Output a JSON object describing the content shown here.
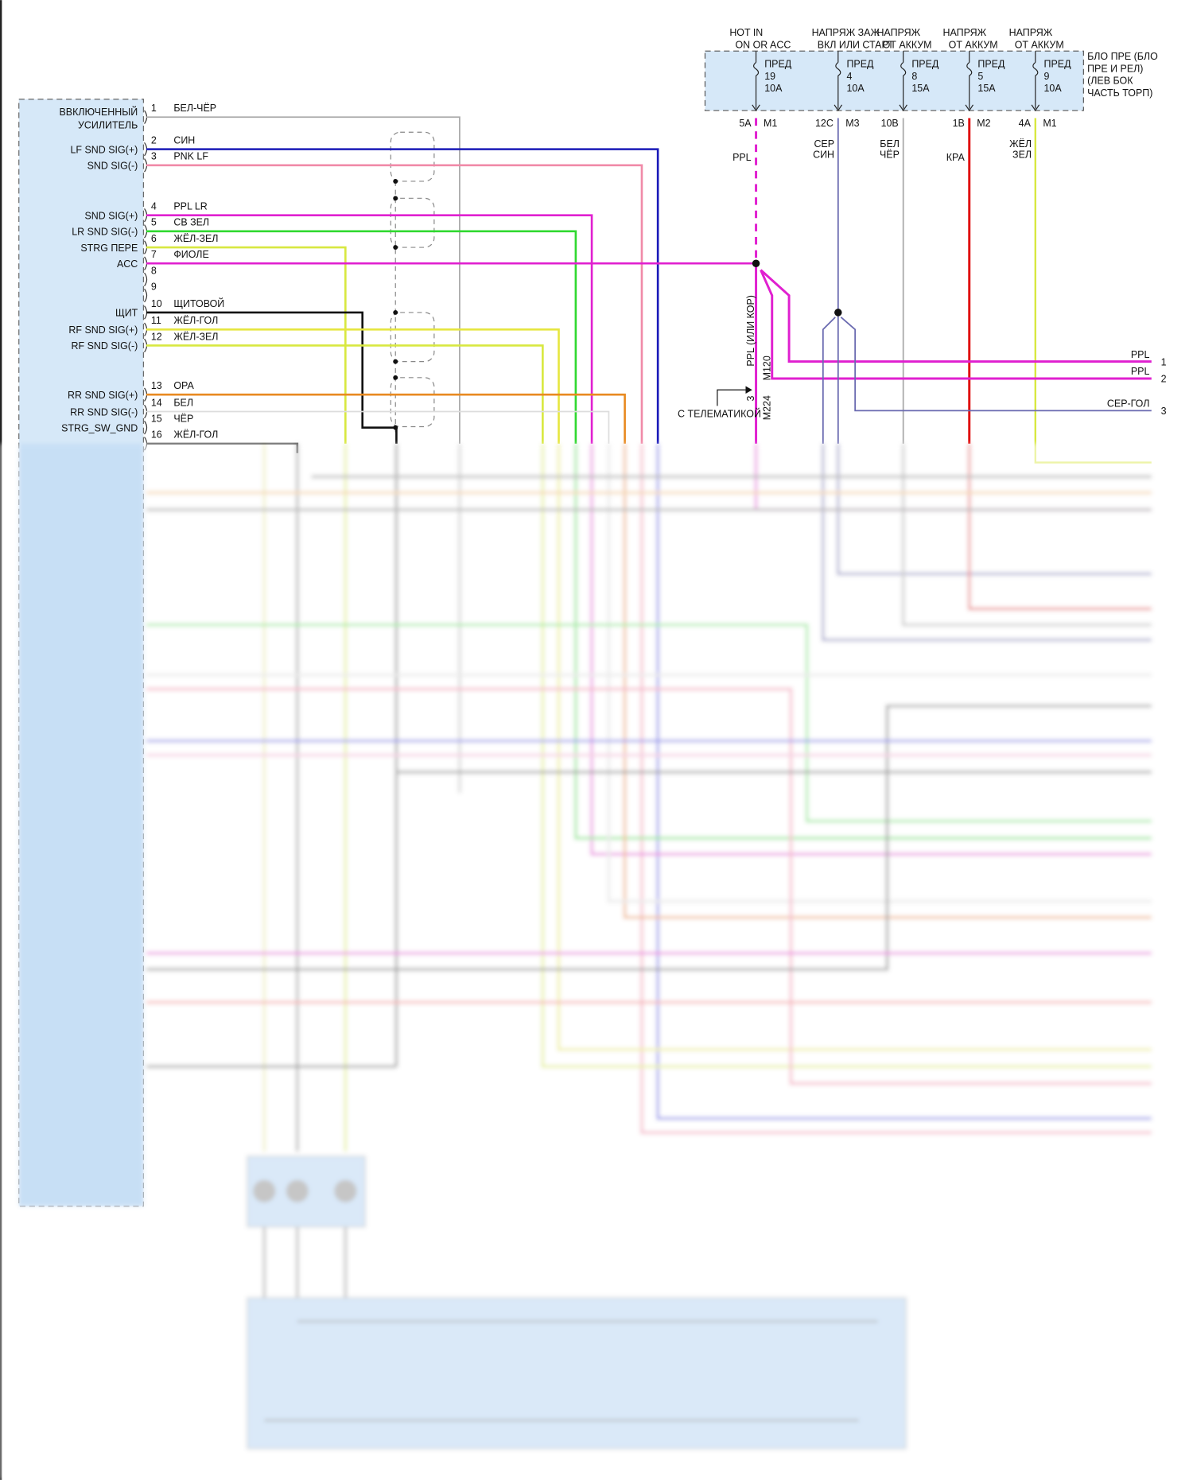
{
  "amp_connector": {
    "signals": [
      {
        "pin": "1",
        "signal": "ВВКЛЮЧЕННЫЙ",
        "signal2": "УСИЛИТЕЛЬ",
        "wire": "БЕЛ-ЧЁР",
        "color": "#a8a8a8"
      },
      {
        "pin": "2",
        "signal": "LF SND SIG(+)",
        "wire": "СИН",
        "color": "#1a1ab8"
      },
      {
        "pin": "3",
        "signal": "SND SIG(-)",
        "wire": "PNK LF",
        "color": "#f08aa8"
      },
      {
        "pin": "4",
        "signal": "SND SIG(+)",
        "wire": "PPL LR",
        "color": "#e020d0"
      },
      {
        "pin": "5",
        "signal": "LR SND SIG(-)",
        "wire": "СВ ЗЕЛ",
        "color": "#30d830"
      },
      {
        "pin": "6",
        "signal": "STRG ПЕРЕ",
        "wire": "ЖЁЛ-ЗЕЛ",
        "color": "#d8e840"
      },
      {
        "pin": "7",
        "signal": "ACC",
        "wire": "ФИОЛЕ",
        "color": "#e020d0"
      },
      {
        "pin": "8",
        "signal": "",
        "wire": "",
        "color": ""
      },
      {
        "pin": "9",
        "signal": "",
        "wire": "",
        "color": ""
      },
      {
        "pin": "10",
        "signal": "ЩИТ",
        "wire": "ЩИТОВОЙ",
        "color": "#111111"
      },
      {
        "pin": "11",
        "signal": "RF SND SIG(+)",
        "wire": "ЖЁЛ-ГОЛ",
        "color": "#e6e640"
      },
      {
        "pin": "12",
        "signal": "RF SND SIG(-)",
        "wire": "ЖЁЛ-ЗЕЛ",
        "color": "#d8e840"
      },
      {
        "pin": "13",
        "signal": "RR SND SIG(+)",
        "wire": "ОРА",
        "color": "#e88a20"
      },
      {
        "pin": "14",
        "signal": "RR SND SIG(-)",
        "wire": "БЕЛ",
        "color": "#d8d8d8"
      },
      {
        "pin": "15",
        "signal": "STRG_SW_GND",
        "wire": "ЧЁР",
        "color": "#555555"
      },
      {
        "pin": "16",
        "signal": "",
        "wire": "ЖЁЛ-ГОЛ",
        "color": "#e6e640"
      }
    ]
  },
  "fuse_block": {
    "name_lines": [
      "БЛО ПРЕ (БЛО",
      "ПРЕ И РЕЛ)",
      "(ЛЕВ БОК",
      "ЧАСТЬ ТОРП)"
    ],
    "fuses": [
      {
        "supply1": "HOT IN",
        "supply2": "ON OR ACC",
        "label": "ПРЕД",
        "number": "19",
        "rating": "10A",
        "terminal": "5A",
        "connector": "M1",
        "wire": "PPL",
        "wire2": "",
        "color": "#e020d0"
      },
      {
        "supply1": "НАПРЯЖ ЗАЖ",
        "supply2": "ВКЛ ИЛИ СТАРТ",
        "label": "ПРЕД",
        "number": "4",
        "rating": "10A",
        "terminal": "12C",
        "connector": "M3",
        "wire": "СЕР",
        "wire2": "СИН",
        "color": "#6a6ab0"
      },
      {
        "supply1": "НАПРЯЖ",
        "supply2": "ОТ АККУМ",
        "label": "ПРЕД",
        "number": "8",
        "rating": "15A",
        "terminal": "10B",
        "connector": "",
        "wire": "БЕЛ",
        "wire2": "ЧЁР",
        "color": "#a8a8a8"
      },
      {
        "supply1": "НАПРЯЖ",
        "supply2": "ОТ АККУМ",
        "label": "ПРЕД",
        "number": "5",
        "rating": "15A",
        "terminal": "1B",
        "connector": "M2",
        "wire": "КРА",
        "wire2": "",
        "color": "#e01010"
      },
      {
        "supply1": "НАПРЯЖ",
        "supply2": "ОТ АККУМ",
        "label": "ПРЕД",
        "number": "9",
        "rating": "10A",
        "terminal": "4A",
        "connector": "M1",
        "wire": "ЖЁЛ",
        "wire2": "ЗЕЛ",
        "color": "#d8e840"
      }
    ]
  },
  "telematics": {
    "vertical_label": "PPL   (ИЛИ КОР)",
    "connector_top": "M120",
    "pin": "3",
    "connector_bottom": "M224",
    "note": "С ТЕЛЕМАТИКОЙ"
  },
  "right_outputs": [
    {
      "wire": "PPL",
      "pin": "1"
    },
    {
      "wire": "PPL",
      "pin": "2"
    },
    {
      "wire": "СЕР-ГОЛ",
      "pin": "3"
    }
  ]
}
